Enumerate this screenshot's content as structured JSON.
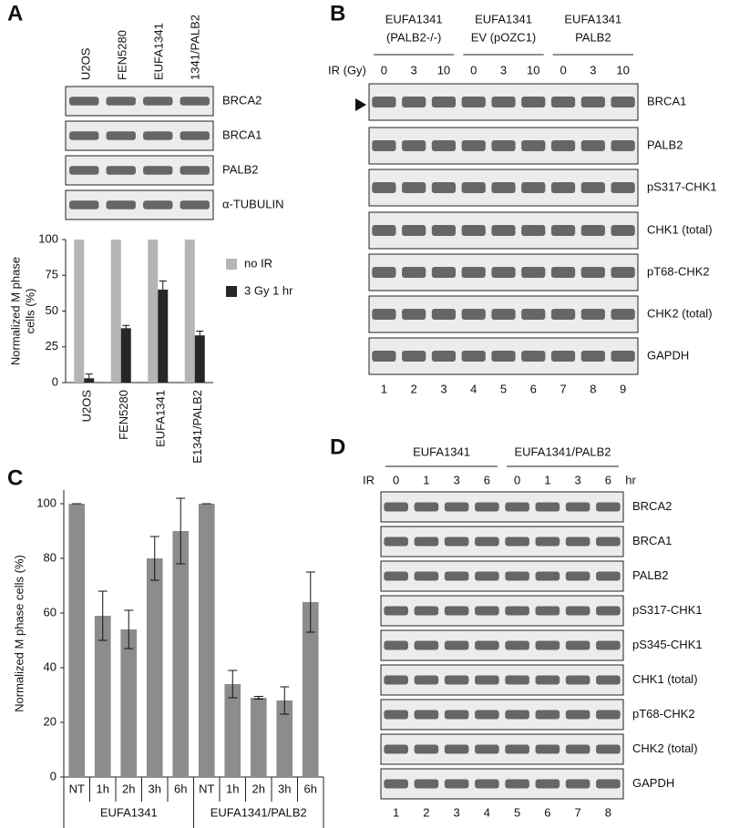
{
  "panel_letters": [
    "A",
    "B",
    "C",
    "D"
  ],
  "panel_a": {
    "lanes": [
      "U2OS",
      "FEN5280",
      "EUFA1341",
      "1341/PALB2"
    ],
    "blot_labels": [
      "BRCA2",
      "BRCA1",
      "PALB2",
      "α-TUBULIN"
    ]
  },
  "panel_b": {
    "groups": [
      [
        "EUFA1341",
        "(PALB2-/-)"
      ],
      [
        "EUFA1341",
        "EV (pOZC1)"
      ],
      [
        "EUFA1341",
        "PALB2"
      ]
    ],
    "ir_label": "IR (Gy)",
    "doses": [
      0,
      3,
      10,
      0,
      3,
      10,
      0,
      3,
      10
    ],
    "blot_labels": [
      "BRCA1",
      "PALB2",
      "pS317-CHK1",
      "CHK1 (total)",
      "pT68-CHK2",
      "CHK2 (total)",
      "GAPDH"
    ],
    "lanes": [
      1,
      2,
      3,
      4,
      5,
      6,
      7,
      8,
      9
    ]
  },
  "panel_d": {
    "groups": [
      "EUFA1341",
      "EUFA1341/PALB2"
    ],
    "ir_label": "IR",
    "times": [
      0,
      1,
      3,
      6,
      0,
      1,
      3,
      6
    ],
    "unit": "hr",
    "blot_labels": [
      "BRCA2",
      "BRCA1",
      "PALB2",
      "pS317-CHK1",
      "pS345-CHK1",
      "CHK1 (total)",
      "pT68-CHK2",
      "CHK2 (total)",
      "GAPDH"
    ],
    "lanes": [
      1,
      2,
      3,
      4,
      5,
      6,
      7,
      8
    ]
  },
  "chart_data": [
    {
      "type": "bar",
      "ylabel": [
        "Normalized M phase",
        "cells (%)"
      ],
      "categories": [
        "U2OS",
        "FEN5280",
        "EUFA1341",
        "E1341/PALB2"
      ],
      "series": [
        {
          "name": "no IR",
          "color": "#b5b5b5",
          "values": [
            100,
            100,
            100,
            100
          ]
        },
        {
          "name": "3 Gy 1 hr",
          "color": "#262626",
          "values": [
            3,
            38,
            65,
            33
          ],
          "errors": [
            3,
            2,
            6,
            3
          ]
        }
      ],
      "ylim": [
        0,
        100
      ],
      "yticks": [
        0,
        25,
        50,
        75,
        100
      ]
    },
    {
      "type": "bar",
      "ylabel": "Normalized M phase cells (%)",
      "categories": [
        "NT",
        "1h",
        "2h",
        "3h",
        "6h",
        "NT",
        "1h",
        "2h",
        "3h",
        "6h"
      ],
      "groups": [
        "EUFA1341",
        "EUFA1341/PALB2"
      ],
      "color": "#8c8c8c",
      "values": [
        100,
        59,
        54,
        80,
        90,
        100,
        34,
        29,
        28,
        64
      ],
      "errors": [
        0,
        9,
        7,
        8,
        12,
        0,
        5,
        0.5,
        5,
        11
      ],
      "ylim": [
        0,
        105
      ],
      "yticks": [
        0,
        20,
        40,
        60,
        80,
        100
      ]
    }
  ]
}
